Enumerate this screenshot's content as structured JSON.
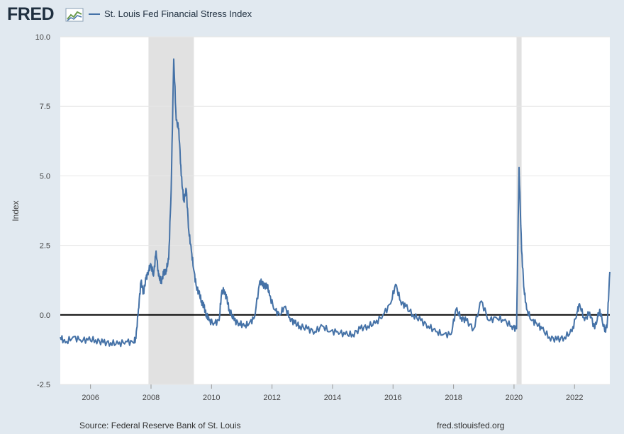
{
  "header": {
    "logo_text": "FRED",
    "legend_label": "St. Louis Fed Financial Stress Index"
  },
  "colors": {
    "series": "#4572a7",
    "recession": "#e1e1e1",
    "background": "#e1e9f0",
    "plot_background": "#ffffff"
  },
  "footer": {
    "source": "Source: Federal Reserve Bank of St. Louis",
    "site": "fred.stlouisfed.org"
  },
  "chart_data": {
    "type": "line",
    "title": "",
    "xlabel": "",
    "ylabel": "Index",
    "xlim": [
      "2005-01",
      "2023-03"
    ],
    "ylim": [
      -2.5,
      10.0
    ],
    "yticks": [
      -2.5,
      0.0,
      2.5,
      5.0,
      7.5,
      10.0
    ],
    "ytick_labels": [
      "-2.5",
      "0.0",
      "2.5",
      "5.0",
      "7.5",
      "10.0"
    ],
    "xticks": [
      2006,
      2008,
      2010,
      2012,
      2014,
      2016,
      2018,
      2020,
      2022
    ],
    "xtick_labels": [
      "2006",
      "2008",
      "2010",
      "2012",
      "2014",
      "2016",
      "2018",
      "2020",
      "2022"
    ],
    "grid": true,
    "zero_line": true,
    "recessions": [
      {
        "start": "2007-12",
        "end": "2009-06"
      },
      {
        "start": "2020-02",
        "end": "2020-04"
      }
    ],
    "series": [
      {
        "name": "St. Louis Fed Financial Stress Index",
        "points": [
          [
            "2005-01",
            -0.8
          ],
          [
            "2005-03",
            -1.0
          ],
          [
            "2005-06",
            -0.8
          ],
          [
            "2005-09",
            -0.9
          ],
          [
            "2005-12",
            -0.9
          ],
          [
            "2006-03",
            -0.9
          ],
          [
            "2006-06",
            -1.0
          ],
          [
            "2006-09",
            -1.0
          ],
          [
            "2006-12",
            -1.05
          ],
          [
            "2007-03",
            -0.95
          ],
          [
            "2007-06",
            -1.0
          ],
          [
            "2007-07",
            -0.85
          ],
          [
            "2007-08",
            0.2
          ],
          [
            "2007-09",
            1.2
          ],
          [
            "2007-10",
            0.8
          ],
          [
            "2007-11",
            1.3
          ],
          [
            "2007-12",
            1.6
          ],
          [
            "2008-01",
            1.8
          ],
          [
            "2008-02",
            1.4
          ],
          [
            "2008-03",
            2.3
          ],
          [
            "2008-04",
            1.4
          ],
          [
            "2008-05",
            1.2
          ],
          [
            "2008-06",
            1.5
          ],
          [
            "2008-07",
            1.6
          ],
          [
            "2008-08",
            2.0
          ],
          [
            "2008-09",
            4.5
          ],
          [
            "2008-10",
            9.2
          ],
          [
            "2008-11",
            7.0
          ],
          [
            "2008-12",
            6.7
          ],
          [
            "2009-01",
            5.0
          ],
          [
            "2009-02",
            4.1
          ],
          [
            "2009-03",
            4.5
          ],
          [
            "2009-04",
            3.0
          ],
          [
            "2009-05",
            2.3
          ],
          [
            "2009-06",
            1.6
          ],
          [
            "2009-07",
            1.0
          ],
          [
            "2009-08",
            0.8
          ],
          [
            "2009-09",
            0.5
          ],
          [
            "2009-10",
            0.3
          ],
          [
            "2009-11",
            0.0
          ],
          [
            "2009-12",
            -0.2
          ],
          [
            "2010-02",
            -0.3
          ],
          [
            "2010-04",
            -0.2
          ],
          [
            "2010-05",
            0.8
          ],
          [
            "2010-06",
            0.9
          ],
          [
            "2010-07",
            0.6
          ],
          [
            "2010-08",
            0.2
          ],
          [
            "2010-10",
            -0.2
          ],
          [
            "2010-12",
            -0.3
          ],
          [
            "2011-02",
            -0.4
          ],
          [
            "2011-04",
            -0.3
          ],
          [
            "2011-06",
            -0.1
          ],
          [
            "2011-08",
            1.1
          ],
          [
            "2011-09",
            1.2
          ],
          [
            "2011-10",
            1.0
          ],
          [
            "2011-11",
            1.1
          ],
          [
            "2011-12",
            0.7
          ],
          [
            "2012-02",
            0.2
          ],
          [
            "2012-04",
            0.0
          ],
          [
            "2012-06",
            0.3
          ],
          [
            "2012-08",
            -0.1
          ],
          [
            "2012-10",
            -0.3
          ],
          [
            "2012-12",
            -0.4
          ],
          [
            "2013-03",
            -0.5
          ],
          [
            "2013-06",
            -0.6
          ],
          [
            "2013-09",
            -0.4
          ],
          [
            "2013-12",
            -0.6
          ],
          [
            "2014-03",
            -0.6
          ],
          [
            "2014-06",
            -0.7
          ],
          [
            "2014-09",
            -0.7
          ],
          [
            "2014-12",
            -0.5
          ],
          [
            "2015-03",
            -0.4
          ],
          [
            "2015-06",
            -0.3
          ],
          [
            "2015-09",
            0.0
          ],
          [
            "2015-12",
            0.4
          ],
          [
            "2016-02",
            1.1
          ],
          [
            "2016-04",
            0.5
          ],
          [
            "2016-06",
            0.3
          ],
          [
            "2016-09",
            0.0
          ],
          [
            "2016-12",
            -0.2
          ],
          [
            "2017-03",
            -0.4
          ],
          [
            "2017-06",
            -0.6
          ],
          [
            "2017-09",
            -0.7
          ],
          [
            "2017-12",
            -0.7
          ],
          [
            "2018-02",
            0.2
          ],
          [
            "2018-04",
            -0.1
          ],
          [
            "2018-06",
            -0.2
          ],
          [
            "2018-09",
            -0.5
          ],
          [
            "2018-12",
            0.5
          ],
          [
            "2019-03",
            -0.2
          ],
          [
            "2019-06",
            -0.1
          ],
          [
            "2019-09",
            -0.2
          ],
          [
            "2019-12",
            -0.4
          ],
          [
            "2020-02",
            -0.5
          ],
          [
            "2020-03",
            5.3
          ],
          [
            "2020-04",
            2.3
          ],
          [
            "2020-05",
            0.9
          ],
          [
            "2020-06",
            0.2
          ],
          [
            "2020-08",
            -0.2
          ],
          [
            "2020-10",
            -0.3
          ],
          [
            "2020-12",
            -0.5
          ],
          [
            "2021-03",
            -0.8
          ],
          [
            "2021-06",
            -0.9
          ],
          [
            "2021-09",
            -0.8
          ],
          [
            "2021-12",
            -0.6
          ],
          [
            "2022-02",
            0.1
          ],
          [
            "2022-03",
            0.4
          ],
          [
            "2022-05",
            -0.2
          ],
          [
            "2022-07",
            0.1
          ],
          [
            "2022-09",
            -0.5
          ],
          [
            "2022-11",
            0.2
          ],
          [
            "2023-01",
            -0.6
          ],
          [
            "2023-02",
            -0.3
          ],
          [
            "2023-03",
            1.55
          ]
        ]
      }
    ]
  }
}
